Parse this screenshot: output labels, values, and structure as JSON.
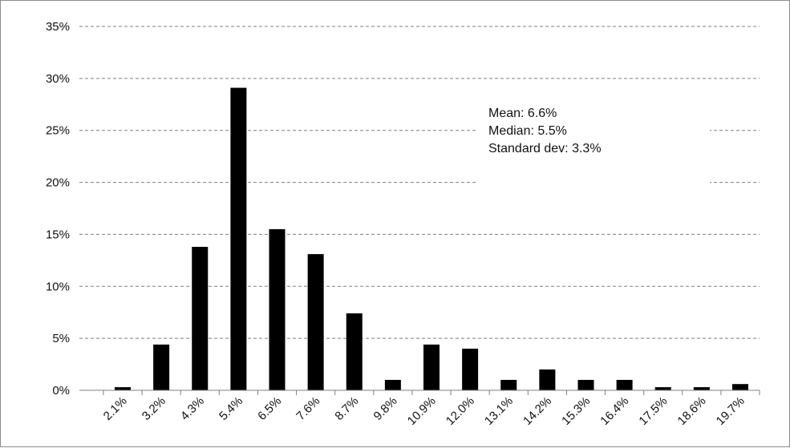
{
  "chart_data": {
    "type": "bar",
    "title": "",
    "xlabel": "",
    "ylabel": "",
    "categories": [
      "2.1%",
      "3.2%",
      "4.3%",
      "5.4%",
      "6.5%",
      "7.6%",
      "8.7%",
      "9.8%",
      "10.9%",
      "12.0%",
      "13.1%",
      "14.2%",
      "15.3%",
      "16.4%",
      "17.5%",
      "18.6%",
      "19.7%"
    ],
    "values": [
      0.3,
      4.4,
      13.8,
      29.1,
      15.5,
      13.1,
      7.4,
      1.0,
      4.4,
      4.0,
      1.0,
      2.0,
      1.0,
      1.0,
      0.3,
      0.3,
      0.6
    ],
    "ylim": [
      0,
      35
    ],
    "yticks": [
      0,
      5,
      10,
      15,
      20,
      25,
      30,
      35
    ],
    "ytick_labels": [
      "0%",
      "5%",
      "10%",
      "15%",
      "20%",
      "25%",
      "30%",
      "35%"
    ],
    "grid": "horizontal dashed",
    "bar_color": "#000000",
    "grid_color": "#7f7f7f",
    "annotations": [
      "Mean: 6.6%",
      "Median: 5.5%",
      "Standard dev: 3.3%"
    ]
  }
}
